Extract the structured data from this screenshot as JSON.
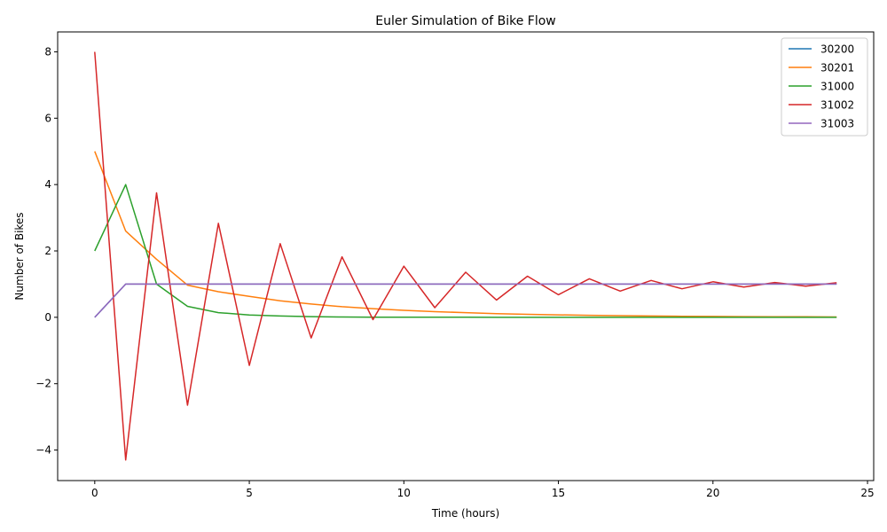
{
  "chart_data": {
    "type": "line",
    "title": "Euler Simulation of Bike Flow",
    "xlabel": "Time (hours)",
    "ylabel": "Number of Bikes",
    "xlim": [
      -1.2,
      25.2
    ],
    "ylim": [
      -4.92,
      8.6
    ],
    "xticks": [
      0,
      5,
      10,
      15,
      20,
      25
    ],
    "xtick_labels": [
      "0",
      "5",
      "10",
      "15",
      "20",
      "25"
    ],
    "yticks": [
      -4,
      -2,
      0,
      2,
      4,
      6,
      8
    ],
    "ytick_labels": [
      "−4",
      "−2",
      "0",
      "2",
      "4",
      "6",
      "8"
    ],
    "grid": false,
    "legend_position": "top-right",
    "x": [
      0,
      1,
      2,
      3,
      4,
      5,
      6,
      7,
      8,
      9,
      10,
      11,
      12,
      13,
      14,
      15,
      16,
      17,
      18,
      19,
      20,
      21,
      22,
      23,
      24
    ],
    "series": [
      {
        "name": "30200",
        "color": "#1f77b4",
        "values": [
          0,
          1,
          1,
          1,
          1,
          1,
          1,
          1,
          1,
          1,
          1,
          1,
          1,
          1,
          1,
          1,
          1,
          1,
          1,
          1,
          1,
          1,
          1,
          1,
          1
        ]
      },
      {
        "name": "30201",
        "color": "#ff7f0e",
        "values": [
          5,
          2.6,
          1.75,
          0.97,
          0.77,
          0.63,
          0.5,
          0.4,
          0.32,
          0.26,
          0.21,
          0.17,
          0.14,
          0.11,
          0.09,
          0.075,
          0.06,
          0.05,
          0.04,
          0.032,
          0.026,
          0.021,
          0.017,
          0.014,
          0.011
        ]
      },
      {
        "name": "31000",
        "color": "#2ca02c",
        "values": [
          2,
          4,
          1,
          0.33,
          0.14,
          0.07,
          0.04,
          0.02,
          0.01,
          0.005,
          0.003,
          0.002,
          0.001,
          0,
          0,
          0,
          0,
          0,
          0,
          0,
          0,
          0,
          0,
          0,
          0
        ]
      },
      {
        "name": "31002",
        "color": "#d62728",
        "values": [
          8,
          -4.3,
          3.75,
          -2.65,
          2.83,
          -1.45,
          2.22,
          -0.62,
          1.82,
          -0.07,
          1.54,
          0.29,
          1.36,
          0.52,
          1.24,
          0.68,
          1.16,
          0.79,
          1.11,
          0.86,
          1.07,
          0.91,
          1.05,
          0.94,
          1.04
        ]
      },
      {
        "name": "31003",
        "color": "#9467bd",
        "values": [
          0,
          1,
          1,
          1,
          1,
          1,
          1,
          1,
          1,
          1,
          1,
          1,
          1,
          1,
          1,
          1,
          1,
          1,
          1,
          1,
          1,
          1,
          1,
          1,
          1
        ]
      }
    ]
  }
}
